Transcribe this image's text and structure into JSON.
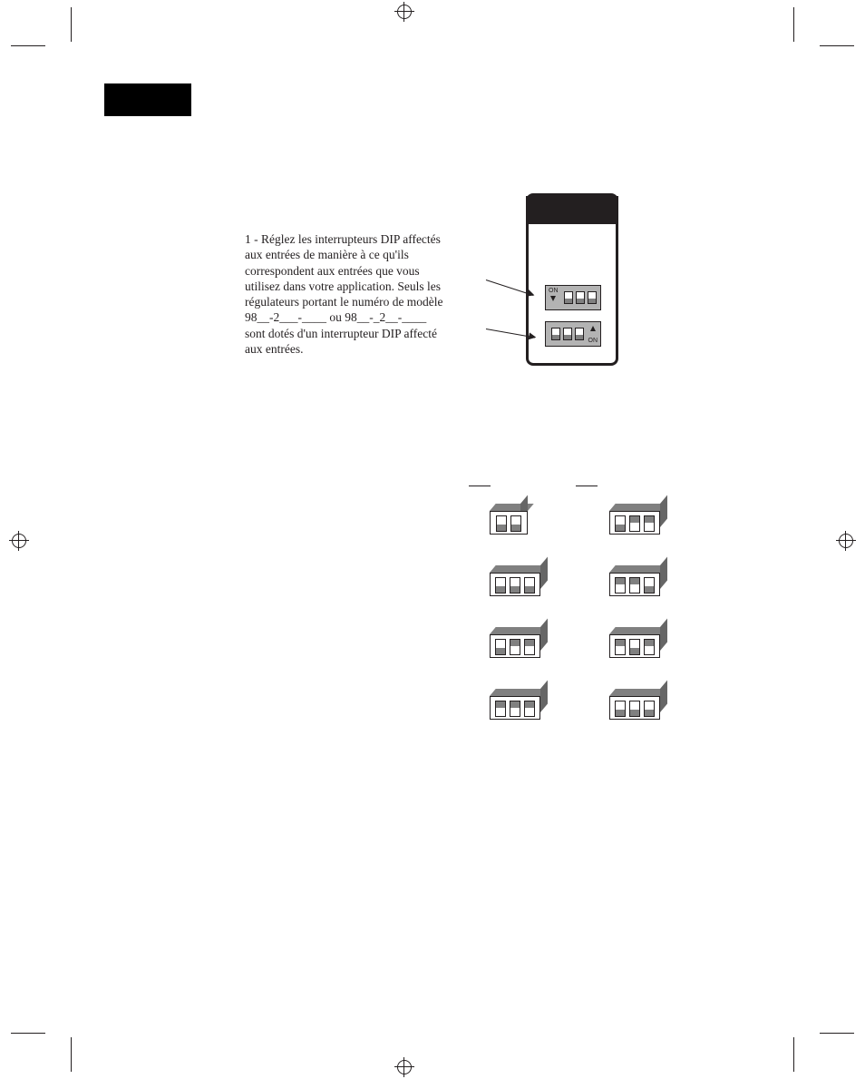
{
  "note_paragraph": "1 - Réglez les interrupteurs DIP affectés aux entrées de manière à ce qu'ils correspondent aux entrées que vous utilisez dans votre application. Seuls les régulateurs portant le numéro de modèle 98__-2___-____ ou 98__-_2__-____ sont dotés d'un interrupteur DIP affecté aux entrées.",
  "chip": {
    "block1": {
      "on_label": "ON",
      "arrow_dir": "down",
      "switches": [
        "down",
        "down",
        "down"
      ]
    },
    "block2": {
      "on_label": "ON",
      "arrow_dir": "up",
      "switches": [
        "down",
        "down",
        "down"
      ]
    }
  },
  "grid": {
    "left": [
      {
        "n": 2,
        "pattern": [
          "down",
          "down"
        ]
      },
      {
        "n": 3,
        "pattern": [
          "down",
          "down",
          "down"
        ]
      },
      {
        "n": 3,
        "pattern": [
          "down",
          "up",
          "up"
        ]
      },
      {
        "n": 3,
        "pattern": [
          "up",
          "up",
          "up"
        ]
      }
    ],
    "right": [
      {
        "n": 3,
        "pattern": [
          "down",
          "up",
          "up"
        ]
      },
      {
        "n": 3,
        "pattern": [
          "up",
          "up",
          "down"
        ]
      },
      {
        "n": 3,
        "pattern": [
          "up",
          "down",
          "up"
        ]
      },
      {
        "n": 3,
        "pattern": [
          "down",
          "down",
          "down"
        ]
      }
    ]
  },
  "colors": {
    "text": "#231f20",
    "chip_border": "#231f20",
    "dip_body": "#b3b3b3",
    "dip_handle": "#808080",
    "dip3d_top": "#808080",
    "dip3d_side": "#666666",
    "background": "#ffffff"
  }
}
